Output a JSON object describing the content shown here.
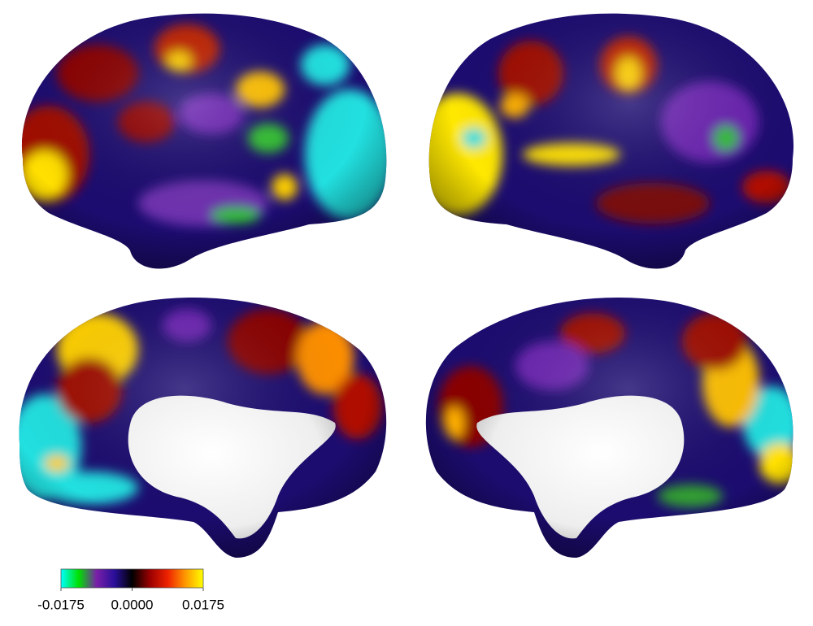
{
  "chart_data": {
    "type": "colorbar",
    "clim": [
      -0.0175,
      0.0175
    ],
    "ticks": [
      -0.0175,
      {
        "value": 0,
        "label": "0.0000"
      },
      0.0175
    ],
    "colormap": [
      "#00ffff",
      "#00e000",
      "#7a1fa8",
      "#2a0f9a",
      "#000000",
      "#9a0000",
      "#ee2200",
      "#ff9900",
      "#ffff00"
    ]
  }
}
